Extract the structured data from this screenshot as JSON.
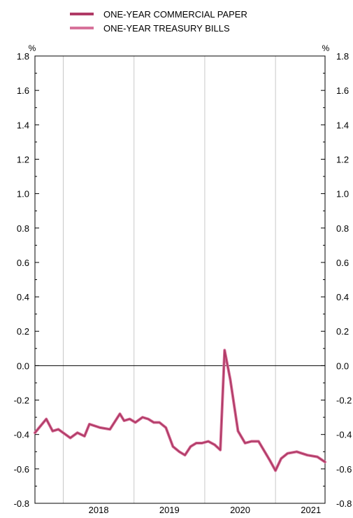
{
  "chart_data": {
    "type": "line",
    "title": "",
    "xlabel": "",
    "ylabel_left": "%",
    "ylabel_right": "%",
    "ylim": [
      -0.8,
      1.8
    ],
    "yticks": [
      "1.8",
      "1.6",
      "1.4",
      "1.2",
      "1.0",
      "0.8",
      "0.6",
      "0.4",
      "0.2",
      "0.0",
      "-0.2",
      "-0.4",
      "-0.6",
      "-0.8"
    ],
    "ytick_values": [
      1.8,
      1.6,
      1.4,
      1.2,
      1.0,
      0.8,
      0.6,
      0.4,
      0.2,
      0.0,
      -0.2,
      -0.4,
      -0.6,
      -0.8
    ],
    "xlim": [
      2017.1,
      2021.2
    ],
    "xticks": [
      {
        "label": "2018",
        "value": 2018.0
      },
      {
        "label": "2019",
        "value": 2019.0
      },
      {
        "label": "2020",
        "value": 2020.0
      },
      {
        "label": "2021",
        "value": 2021.0
      }
    ],
    "year_dividers": [
      2017.5,
      2018.5,
      2019.5,
      2020.5
    ],
    "grid": "vertical year dividers, zero line",
    "legend_position": "top",
    "series": [
      {
        "name": "ONE-YEAR COMMERCIAL PAPER",
        "color": "#b03a66",
        "x": [
          2017.1,
          2017.26,
          2017.35,
          2017.43,
          2017.6,
          2017.7,
          2017.8,
          2017.87,
          2018.02,
          2018.16,
          2018.3,
          2018.36,
          2018.44,
          2018.52,
          2018.62,
          2018.7,
          2018.78,
          2018.86,
          2018.95,
          2019.05,
          2019.14,
          2019.22,
          2019.3,
          2019.38,
          2019.46,
          2019.55,
          2019.64,
          2019.72,
          2019.78,
          2019.86,
          2019.97,
          2020.07,
          2020.16,
          2020.26,
          2020.42,
          2020.5,
          2020.58,
          2020.67,
          2020.8,
          2020.95,
          2021.09,
          2021.2
        ],
        "values": [
          -0.39,
          -0.31,
          -0.38,
          -0.37,
          -0.42,
          -0.39,
          -0.41,
          -0.34,
          -0.36,
          -0.37,
          -0.28,
          -0.32,
          -0.31,
          -0.33,
          -0.3,
          -0.31,
          -0.33,
          -0.33,
          -0.36,
          -0.47,
          -0.5,
          -0.52,
          -0.47,
          -0.45,
          -0.45,
          -0.44,
          -0.46,
          -0.49,
          0.09,
          -0.08,
          -0.38,
          -0.45,
          -0.44,
          -0.44,
          -0.55,
          -0.61,
          -0.54,
          -0.51,
          -0.5,
          -0.52,
          -0.53,
          -0.56
        ]
      },
      {
        "name": "ONE-YEAR TREASURY BILLS",
        "color": "#d7729a",
        "x": [
          2017.1,
          2017.26,
          2017.35,
          2017.43,
          2017.6,
          2017.7,
          2017.8,
          2017.87,
          2018.02,
          2018.16,
          2018.3,
          2018.36,
          2018.44,
          2018.52,
          2018.62,
          2018.7,
          2018.78,
          2018.86,
          2018.95,
          2019.05,
          2019.14,
          2019.22,
          2019.3,
          2019.38,
          2019.46,
          2019.55,
          2019.64,
          2019.72,
          2019.78,
          2019.86,
          2019.97,
          2020.07,
          2020.16,
          2020.26,
          2020.42,
          2020.5,
          2020.58,
          2020.67,
          2020.8,
          2020.95,
          2021.09,
          2021.2
        ],
        "values": [
          -0.39,
          -0.31,
          -0.38,
          -0.37,
          -0.42,
          -0.39,
          -0.41,
          -0.34,
          -0.36,
          -0.37,
          -0.28,
          -0.32,
          -0.31,
          -0.33,
          -0.3,
          -0.31,
          -0.33,
          -0.33,
          -0.36,
          -0.47,
          -0.5,
          -0.52,
          -0.47,
          -0.45,
          -0.45,
          -0.44,
          -0.46,
          -0.49,
          0.09,
          -0.08,
          -0.38,
          -0.45,
          -0.44,
          -0.44,
          -0.55,
          -0.61,
          -0.54,
          -0.51,
          -0.5,
          -0.52,
          -0.53,
          -0.56
        ]
      }
    ]
  }
}
